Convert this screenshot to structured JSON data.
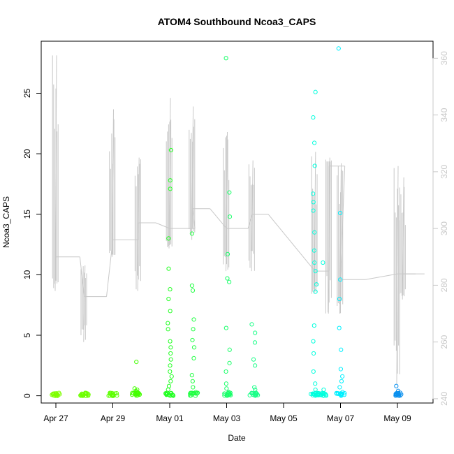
{
  "chart_data": {
    "type": "scatter",
    "title": "ATOM4 Southbound Ncoa3_CAPS",
    "xlabel": "Date",
    "ylabel": "Ncoa3_CAPS",
    "x_ticks": [
      "Apr 27",
      "Apr 29",
      "May 01",
      "May 03",
      "May 05",
      "May 07",
      "May 09"
    ],
    "y_ticks": [
      0,
      5,
      10,
      15,
      20,
      25
    ],
    "y2_ticks": [
      240,
      260,
      280,
      300,
      320,
      340,
      360
    ],
    "x_range_days": [
      -0.5,
      12.9
    ],
    "ylim": [
      -0.6,
      29.3
    ],
    "y2lim": [
      238.5,
      366.0
    ],
    "grid": false,
    "secondary_axis_color": "#c8c8c8",
    "scatter_style": "open circles, color gradient green to blue over time",
    "scatter_clusters": [
      {
        "day": 0.0,
        "color": "#7fff00",
        "values": [
          0,
          0,
          0,
          0,
          0
        ]
      },
      {
        "day": 1.0,
        "color": "#6eff00",
        "values": [
          0,
          0,
          0,
          0
        ]
      },
      {
        "day": 2.0,
        "color": "#5cff00",
        "values": [
          0,
          0,
          0,
          0,
          0
        ]
      },
      {
        "day": 2.8,
        "color": "#44ff00",
        "values": [
          0,
          0.1,
          0.2,
          0.3,
          0.4,
          0.5,
          0.6,
          2.8
        ]
      },
      {
        "day": 4.0,
        "color": "#22ff22",
        "values": [
          0,
          0.2,
          0.5,
          0.8,
          1.2,
          1.6,
          2.0,
          2.5,
          3.0,
          3.5,
          4.0,
          4.5,
          5.5,
          6.0,
          7.0,
          8.0,
          8.8,
          10.5,
          13.0,
          17.1,
          17.8,
          20.3
        ]
      },
      {
        "day": 4.85,
        "color": "#22ff44",
        "values": [
          0,
          0.3,
          0.7,
          1.2,
          1.7,
          3.1,
          4.0,
          4.6,
          5.5,
          6.3,
          8.7,
          9.1,
          13.4
        ]
      },
      {
        "day": 6.05,
        "color": "#1aff6a",
        "values": [
          0,
          0.3,
          0.6,
          1.0,
          2.0,
          2.7,
          3.8,
          5.6,
          9.4,
          9.7,
          11.7,
          14.8,
          16.8,
          27.9
        ]
      },
      {
        "day": 6.95,
        "color": "#1aff88",
        "values": [
          0,
          0.2,
          0.5,
          0.7,
          2.5,
          3.0,
          4.4,
          5.2,
          5.9
        ]
      },
      {
        "day": 9.1,
        "color": "#00ffdd",
        "values": [
          0,
          0.2,
          0.5,
          1.0,
          2.0,
          3.5,
          4.5,
          5.8,
          8.6,
          9.2,
          10.3,
          11.0,
          12.0,
          13.5,
          15.3,
          16.0,
          16.7,
          19.0,
          20.9,
          23.0,
          25.1
        ]
      },
      {
        "day": 9.35,
        "color": "#00ffdd",
        "values": [
          0,
          0.5,
          11.0
        ]
      },
      {
        "day": 10.0,
        "color": "#00f0ff",
        "values": [
          0,
          0.3,
          0.7,
          1.2,
          1.6,
          2.2,
          3.8,
          5.6,
          8.0,
          9.6,
          15.1,
          28.7
        ]
      },
      {
        "day": 12.0,
        "color": "#0a90ee",
        "values": [
          0,
          0.1,
          0.2,
          0.4,
          0.8
        ]
      }
    ],
    "secondary_series": {
      "name": "",
      "color": "#c8c8c8",
      "segments": [
        {
          "day": 0.0,
          "low": 278,
          "high": 361,
          "mid": 290
        },
        {
          "day": 1.0,
          "low": 260,
          "high": 287,
          "mid": 276
        },
        {
          "day": 2.0,
          "low": 290,
          "high": 342,
          "mid": 296
        },
        {
          "day": 2.9,
          "low": 278,
          "high": 325,
          "mid": 302
        },
        {
          "day": 4.0,
          "low": 293,
          "high": 346,
          "mid": 300
        },
        {
          "day": 4.8,
          "low": 296,
          "high": 343,
          "mid": 307
        },
        {
          "day": 6.0,
          "low": 285,
          "high": 334,
          "mid": 300
        },
        {
          "day": 6.9,
          "low": 285,
          "high": 324,
          "mid": 305
        },
        {
          "day": 9.1,
          "low": 277,
          "high": 327,
          "mid": 285
        },
        {
          "day": 9.6,
          "low": 270,
          "high": 325,
          "mid": 322
        },
        {
          "day": 10.0,
          "low": 270,
          "high": 323,
          "mid": 282
        },
        {
          "day": 12.0,
          "low": 245,
          "high": 322,
          "mid": 284
        },
        {
          "day": 12.2,
          "low": 275,
          "high": 318,
          "mid": 284
        }
      ]
    }
  }
}
